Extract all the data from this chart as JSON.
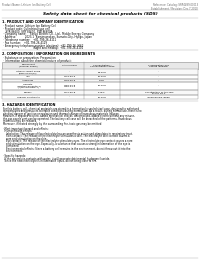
{
  "header_left": "Product Name: Lithium Ion Battery Cell",
  "header_right_line1": "Reference: Catalog: SRP4489-00013",
  "header_right_line2": "Establishment / Revision: Dec.7.2010",
  "title": "Safety data sheet for chemical products (SDS)",
  "section1_title": "1. PRODUCT AND COMPANY IDENTIFICATION",
  "section1_lines": [
    "· Product name: Lithium Ion Battery Cell",
    "· Product code: Cylindrical-type cell",
    "   SYR 86600, SYR 86600, SYR 86600A",
    "· Company name:    Sanyo Electric Co., Ltd., Mobile Energy Company",
    "· Address:          2023-1  Kamimunakan, Sumoto-City, Hyogo, Japan",
    "· Telephone number:   +81-799-26-4111",
    "· Fax number:   +81-799-26-4129",
    "· Emergency telephone number (daytime): +81-799-26-3662",
    "                                  (Night and holiday): +81-799-26-4101"
  ],
  "section2_title": "2. COMPOSITION / INFORMATION ON INGREDIENTS",
  "section2_sub": "· Substance or preparation: Preparation",
  "section2_sub2": "· Information about the chemical nature of product:",
  "table_rows": [
    [
      "Lithium cobalt oxide\n(LiMn-CoO2(O))",
      "-",
      "30-40%",
      "-"
    ],
    [
      "Iron",
      "7439-89-6",
      "10-20%",
      "-"
    ],
    [
      "Aluminum",
      "7429-90-5",
      "2-8%",
      "-"
    ],
    [
      "Graphite\n(Mixture graphite-1)\n(Al/Mo-graphite-1)",
      "7782-42-5\n7782-44-2",
      "10-20%",
      "-"
    ],
    [
      "Copper",
      "7440-50-8",
      "5-15%",
      "Sensitization of the skin\ngroup No.2"
    ],
    [
      "Organic electrolyte",
      "-",
      "10-20%",
      "Inflammable liquid"
    ]
  ],
  "section3_title": "3. HAZARDS IDENTIFICATION",
  "section3_body": [
    "For this battery cell, chemical materials are stored in a hermetically sealed steel case, designed to withstand",
    "temperatures and pressures tolerable conditions during normal use. As a result, during normal use, there is no",
    "physical danger of ignition or explosion and thermal change of hazardous materials leakage.",
    "However, if exposed to a fire, added mechanical shocks, decomposed, added electro without any misuse,",
    "the gas nozzle vent can be operated. The battery cell case will be breached of the patterns. Hazardous",
    "materials may be released.",
    "Moreover, if heated strongly by the surrounding fire, toxic gas may be emitted.",
    "",
    "· Most important hazard and effects:",
    "  Human health effects:",
    "    Inhalation: The release of the electrolyte has an anesthesia action and stimulates in respiratory tract.",
    "    Skin contact: The release of the electrolyte stimulates a skin. The electrolyte skin contact causes a",
    "    sore and stimulation on the skin.",
    "    Eye contact: The release of the electrolyte stimulates eyes. The electrolyte eye contact causes a sore",
    "    and stimulation on the eye. Especially, a substance that causes a strong inflammation of the eye is",
    "    contained.",
    "    Environmental effects: Since a battery cell remains in the environment, do not throw out it into the",
    "    environment.",
    "",
    "· Specific hazards:",
    "  If the electrolyte contacts with water, it will generate detrimental hydrogen fluoride.",
    "  Since the neat electrolyte is inflammable liquid, do not bring close to fire."
  ],
  "bg_color": "#ffffff",
  "text_color": "#000000",
  "divider_color": "#aaaaaa",
  "table_border_color": "#888888",
  "header_text_color": "#666666"
}
